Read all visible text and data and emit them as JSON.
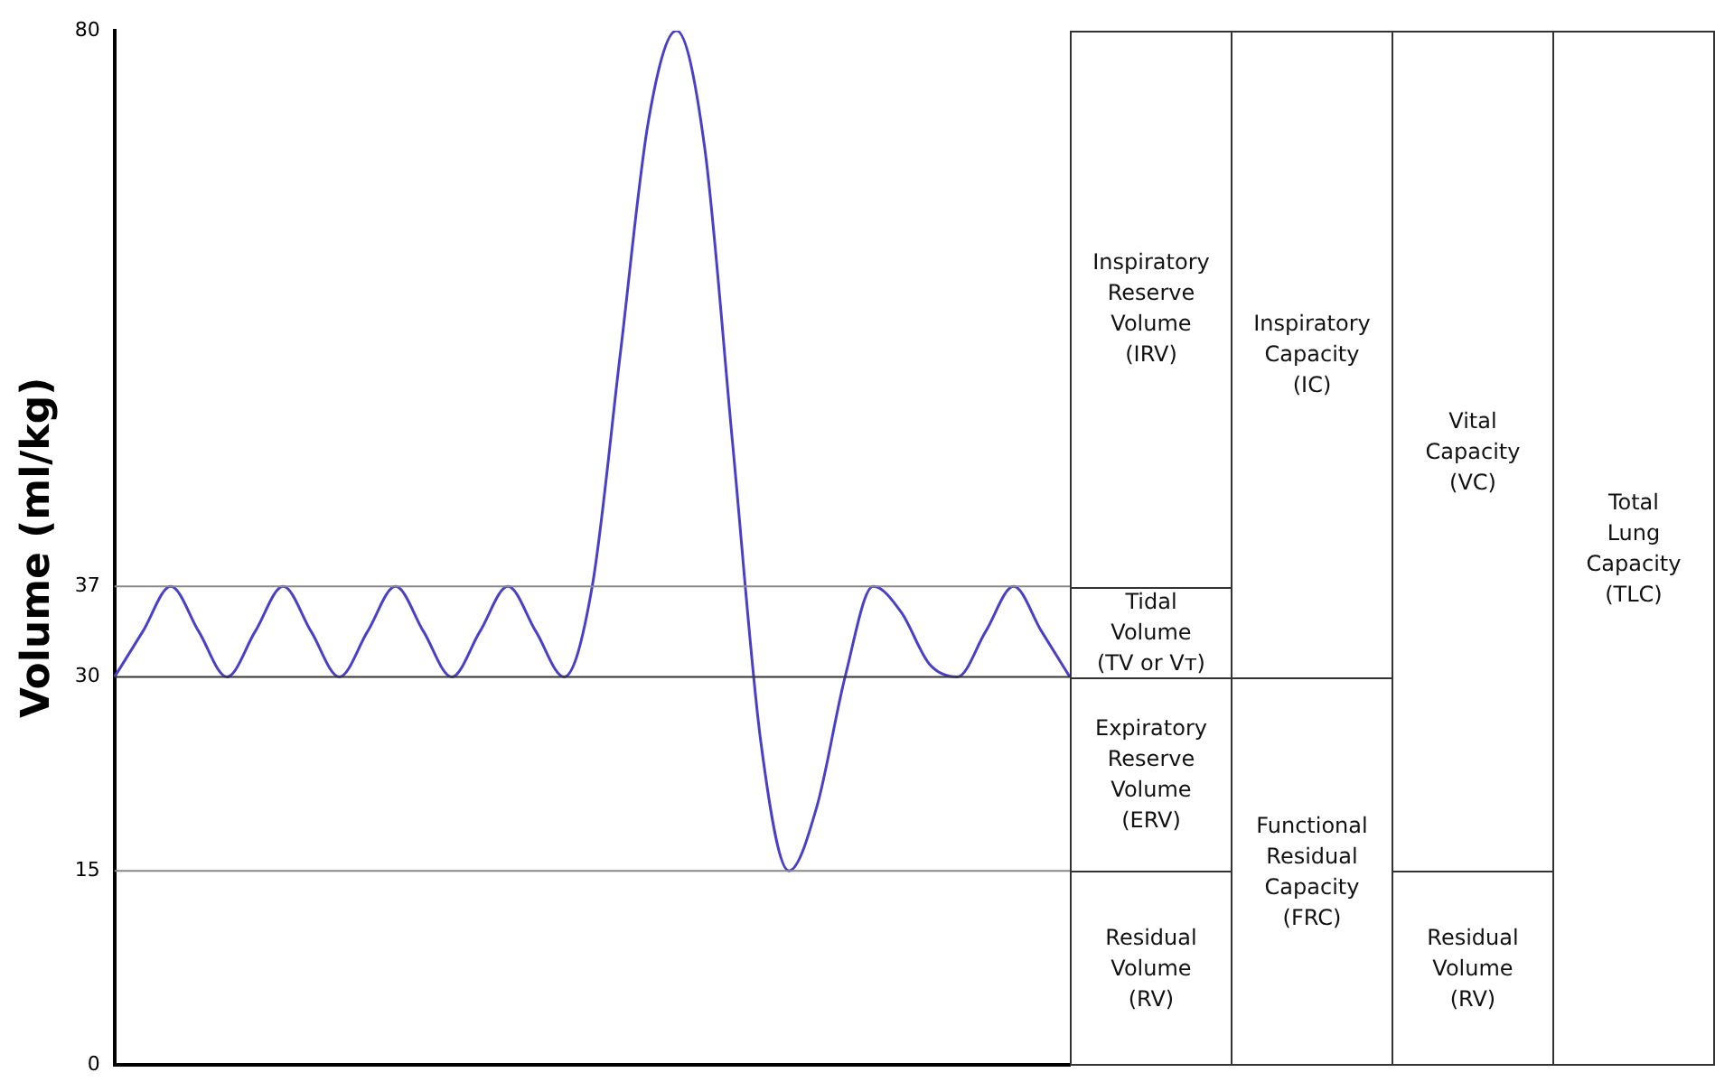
{
  "chart_data": {
    "type": "line",
    "ylabel": "Volume (ml/kg)",
    "categories": [
      null,
      null,
      null,
      null,
      null,
      null,
      null,
      null,
      null,
      null,
      null,
      null,
      null,
      null,
      null,
      null,
      null,
      null,
      null,
      null,
      null,
      null,
      null,
      null,
      null,
      null,
      null,
      null,
      null,
      null,
      null,
      null,
      null,
      null,
      null
    ],
    "series": [
      {
        "color": "#4a3fc8",
        "values": [
          30,
          33.5,
          37,
          33.5,
          30,
          33.5,
          37,
          33.5,
          30,
          33.5,
          37,
          33.5,
          30,
          33.5,
          37,
          33.5,
          30,
          37,
          55,
          73,
          80,
          71,
          48,
          25,
          15,
          20,
          30,
          37,
          35,
          31,
          30,
          33.5,
          37,
          33.5,
          30
        ]
      }
    ],
    "ylim": [
      0,
      80
    ],
    "yticks": [
      0,
      15,
      30,
      37,
      80
    ],
    "tick_labels": "y",
    "grid": false,
    "legend": false,
    "marker": "none",
    "line_style": "solid",
    "ref_lines": [
      {
        "axis": "y",
        "value": 37,
        "color": "#888888"
      },
      {
        "axis": "y",
        "value": 30,
        "color": "#333333"
      },
      {
        "axis": "y",
        "value": 15,
        "color": "#888888"
      }
    ],
    "annotations": [
      "Inspiratory Reserve Volume (IRV)",
      "Tidal Volume (TV or Vᴛ)",
      "Expiratory Reserve Volume (ERV)",
      "Residual Volume (RV)",
      "Inspiratory Capacity (IC)",
      "Functional Residual Capacity (FRC)",
      "Vital Capacity (VC)",
      "Residual Volume (RV)",
      "Total Lung Capacity (TLC)"
    ]
  }
}
